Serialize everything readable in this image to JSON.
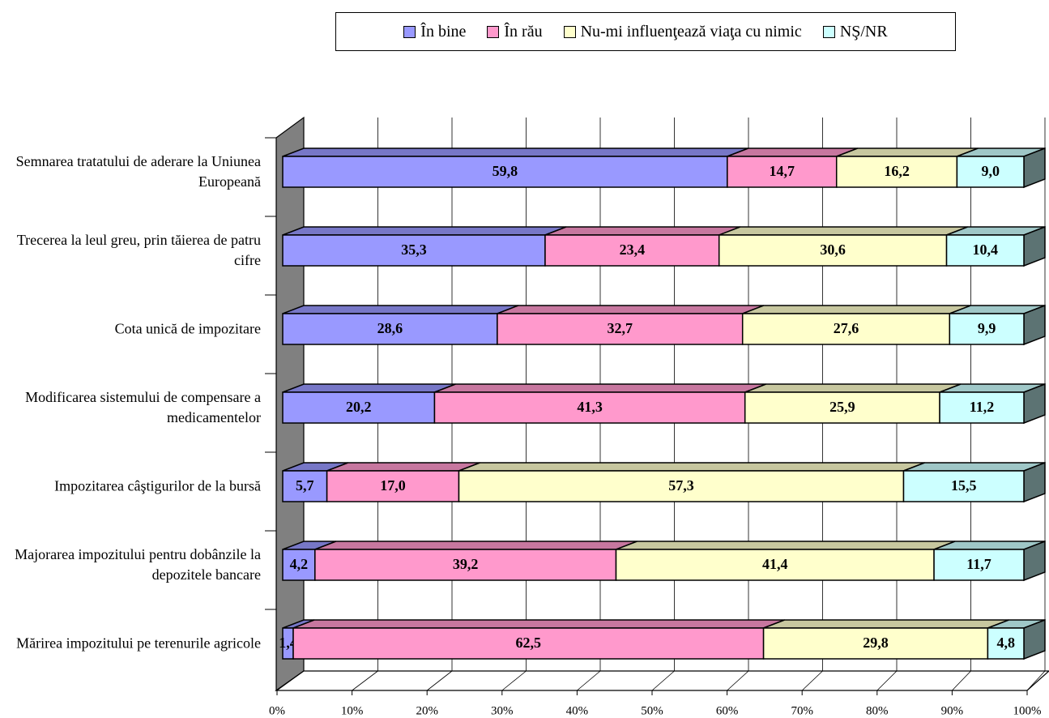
{
  "chart_data": {
    "type": "bar",
    "orientation": "horizontal",
    "stacking": "percent",
    "categories": [
      "Semnarea tratatului de aderare la Uniunea Europeană",
      "Trecerea la leul greu, prin tăierea de patru cifre",
      "Cota unică de impozitare",
      "Modificarea sistemului de compensare a medicamentelor",
      "Impozitarea câştigurilor de la bursă",
      "Majorarea impozitului pentru dobânzile la depozitele bancare",
      "Mărirea impozitului pe terenurile agricole"
    ],
    "series": [
      {
        "name": "În bine",
        "color": "#9999ff",
        "values": [
          59.8,
          35.3,
          28.6,
          20.2,
          5.7,
          4.2,
          1.4
        ],
        "value_labels": [
          "59,8",
          "35,3",
          "28,6",
          "20,2",
          "5,7",
          "4,2",
          "1,4"
        ]
      },
      {
        "name": "În rău",
        "color": "#ff99cc",
        "values": [
          14.7,
          23.4,
          32.7,
          41.3,
          17.0,
          39.2,
          62.5
        ],
        "value_labels": [
          "14,7",
          "23,4",
          "32,7",
          "41,3",
          "17,0",
          "39,2",
          "62,5"
        ]
      },
      {
        "name": "Nu-mi influenţează viaţa cu nimic",
        "color": "#ffffcc",
        "values": [
          16.2,
          30.6,
          27.6,
          25.9,
          57.3,
          41.4,
          29.8
        ],
        "value_labels": [
          "16,2",
          "30,6",
          "27,6",
          "25,9",
          "57,3",
          "41,4",
          "29,8"
        ]
      },
      {
        "name": "NŞ/NR",
        "color": "#ccffff",
        "values": [
          9.0,
          10.4,
          9.9,
          11.2,
          15.5,
          11.7,
          4.8
        ],
        "value_labels": [
          "9,0",
          "10,4",
          "9,9",
          "11,2",
          "15,5",
          "11,7",
          "4,8"
        ]
      }
    ],
    "xlim": [
      0,
      100
    ],
    "xticks": [
      {
        "value": 0,
        "label": "0%"
      },
      {
        "value": 10,
        "label": "10%"
      },
      {
        "value": 20,
        "label": "20%"
      },
      {
        "value": 30,
        "label": "30%"
      },
      {
        "value": 40,
        "label": "40%"
      },
      {
        "value": 50,
        "label": "50%"
      },
      {
        "value": 60,
        "label": "60%"
      },
      {
        "value": 70,
        "label": "70%"
      },
      {
        "value": 80,
        "label": "80%"
      },
      {
        "value": 90,
        "label": "90%"
      },
      {
        "value": 100,
        "label": "100%"
      }
    ],
    "grid": true,
    "legend": "top"
  }
}
